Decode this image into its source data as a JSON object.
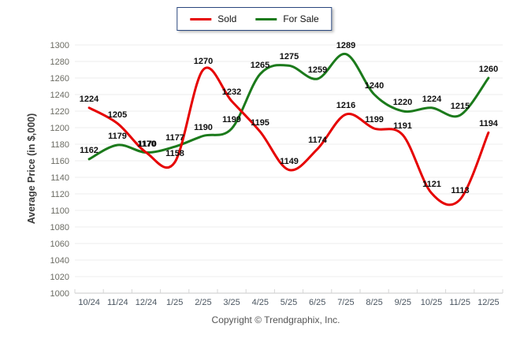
{
  "legend": {
    "items": [
      {
        "label": "Sold",
        "color": "#e60000"
      },
      {
        "label": "For Sale",
        "color": "#1b7a1b"
      }
    ]
  },
  "y_axis_title": "Average Price (in $,000)",
  "footer": "Copyright © Trendgraphix, Inc.",
  "chart_data": {
    "type": "line",
    "categories": [
      "10/24",
      "11/24",
      "12/24",
      "1/25",
      "2/25",
      "3/25",
      "4/25",
      "5/25",
      "6/25",
      "7/25",
      "8/25",
      "9/25",
      "10/25",
      "11/25",
      "12/25"
    ],
    "series": [
      {
        "name": "Sold",
        "color": "#e60000",
        "values": [
          1224,
          1205,
          1170,
          1158,
          1270,
          1232,
          1195,
          1149,
          1174,
          1216,
          1199,
          1191,
          1121,
          1113,
          1194
        ]
      },
      {
        "name": "For Sale",
        "color": "#1b7a1b",
        "values": [
          1162,
          1179,
          1170,
          1177,
          1190,
          1199,
          1265,
          1275,
          1259,
          1289,
          1240,
          1220,
          1224,
          1215,
          1260
        ]
      }
    ],
    "title": "",
    "xlabel": "",
    "ylabel": "Average Price (in $,000)",
    "ylim": [
      1000,
      1300
    ],
    "ytick_step": 20,
    "grid": true,
    "smooth": true,
    "data_labels": true,
    "legend_position": "top-center"
  }
}
